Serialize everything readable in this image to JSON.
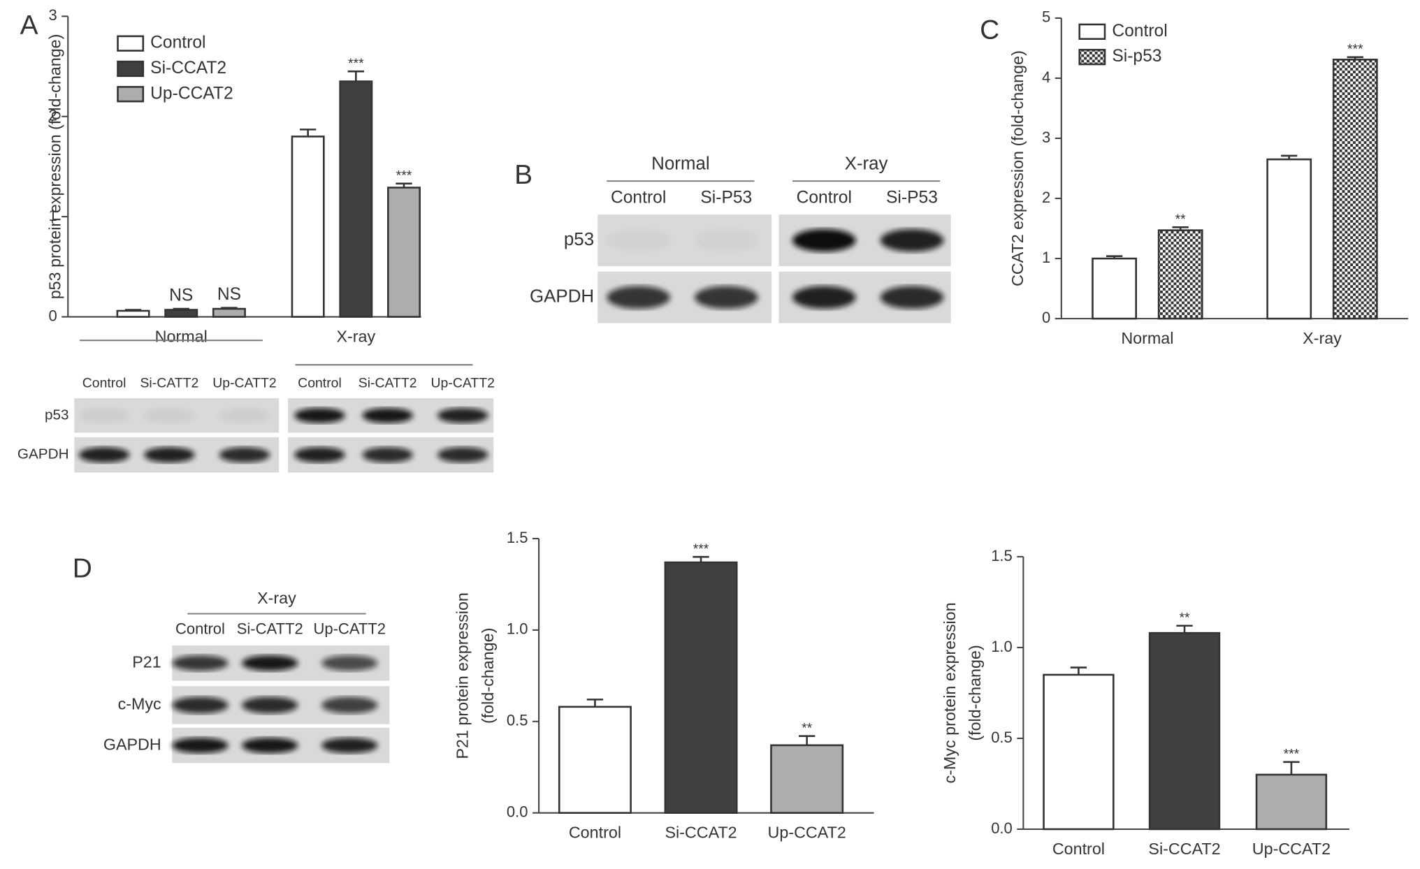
{
  "panel_labels": [
    "A",
    "B",
    "C",
    "D"
  ],
  "chart_data": [
    {
      "type": "bar",
      "y_label": [
        "p53 protein expression (fold-change)"
      ],
      "categories": [
        "Normal",
        "X-ray"
      ],
      "series": [
        {
          "name": "Control",
          "color": "#ffffff",
          "values": [
            0.06,
            1.8
          ],
          "errors": [
            0.01,
            0.07
          ],
          "annotations": [
            null,
            null
          ]
        },
        {
          "name": "Si-CCAT2",
          "color": "#404040",
          "values": [
            0.07,
            2.35
          ],
          "errors": [
            0.01,
            0.1
          ],
          "annotations": [
            "NS",
            "***"
          ]
        },
        {
          "name": "Up-CCAT2",
          "color": "#adadad",
          "values": [
            0.08,
            1.29
          ],
          "errors": [
            0.01,
            0.04
          ],
          "annotations": [
            "NS",
            "***"
          ]
        }
      ],
      "ylim": [
        0,
        3
      ],
      "yticks": [
        0,
        1,
        2,
        3
      ]
    },
    {
      "type": "bar",
      "y_label": [
        "CCAT2 expression (fold-change)"
      ],
      "categories": [
        "Normal",
        "X-ray"
      ],
      "series": [
        {
          "name": "Control",
          "color": "#ffffff",
          "values": [
            1.0,
            2.65
          ],
          "errors": [
            0.04,
            0.06
          ],
          "annotations": [
            null,
            null
          ]
        },
        {
          "name": "Si-p53",
          "color": "#333333",
          "hatch": true,
          "values": [
            1.47,
            4.31
          ],
          "errors": [
            0.05,
            0.04
          ],
          "annotations": [
            "**",
            "***"
          ]
        }
      ],
      "ylim": [
        0,
        5
      ],
      "yticks": [
        0,
        1,
        2,
        3,
        4,
        5
      ]
    },
    {
      "type": "bar",
      "y_label": [
        "P21 protein expression",
        "(fold-change)"
      ],
      "categories": [
        "Control",
        "Si-CCAT2",
        "Up-CCAT2"
      ],
      "values": [
        0.58,
        1.37,
        0.37
      ],
      "errors": [
        0.04,
        0.03,
        0.05
      ],
      "annotations": [
        null,
        "***",
        "**"
      ],
      "colors": [
        "#ffffff",
        "#404040",
        "#adadad"
      ],
      "ylim": [
        0,
        1.5
      ],
      "yticks": [
        {
          "value": 0,
          "label": "0.0"
        },
        0.5,
        {
          "value": 1,
          "label": "1.0"
        },
        1.5
      ]
    },
    {
      "type": "bar",
      "y_label": [
        "c-Myc protein expression",
        "(fold-change)"
      ],
      "categories": [
        "Control",
        "Si-CCAT2",
        "Up-CCAT2"
      ],
      "values": [
        0.85,
        1.08,
        0.3
      ],
      "errors": [
        0.04,
        0.04,
        0.07
      ],
      "annotations": [
        null,
        "**",
        "***"
      ],
      "colors": [
        "#ffffff",
        "#404040",
        "#adadad"
      ],
      "ylim": [
        0,
        1.5
      ],
      "yticks": [
        {
          "value": 0,
          "label": "0.0"
        },
        0.5,
        {
          "value": 1,
          "label": "1.0"
        },
        1.5
      ]
    }
  ],
  "blots": [
    {
      "lanes": [
        "Control",
        "Si-CATT2",
        "Up-CATT2",
        "Control",
        "Si-CATT2",
        "Up-CATT2"
      ],
      "rows": [
        "p53",
        "GAPDH"
      ]
    },
    {
      "groups": [
        "Normal",
        "X-ray"
      ],
      "lanes": [
        "Control",
        "Si-P53",
        "Control",
        "Si-P53"
      ],
      "rows": [
        "p53",
        "GAPDH"
      ]
    },
    {
      "groups": [
        "X-ray"
      ],
      "lanes": [
        "Control",
        "Si-CATT2",
        "Up-CATT2"
      ],
      "rows": [
        "P21",
        "c-Myc",
        "GAPDH"
      ]
    }
  ]
}
